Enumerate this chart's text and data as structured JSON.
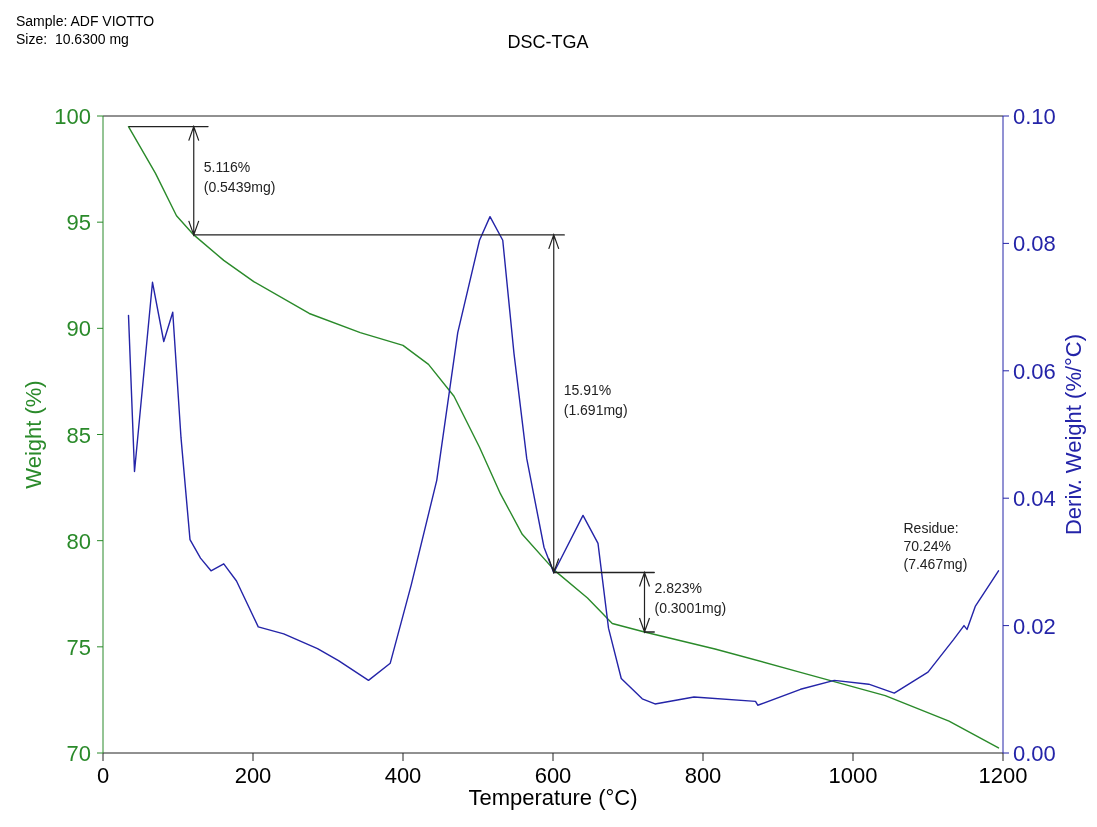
{
  "chart_data": {
    "type": "line",
    "title": "DSC-TGA",
    "xlabel": "Temperature (°C)",
    "ylabel": "Weight (%)",
    "y2label": "Deriv. Weight (%/°C)",
    "xlim": [
      0,
      1200
    ],
    "xticks": [
      0,
      200,
      400,
      600,
      800,
      1000,
      1200
    ],
    "ylim": [
      70,
      100
    ],
    "yticks": [
      70,
      75,
      80,
      85,
      90,
      95,
      100
    ],
    "y2lim": [
      0,
      0.1
    ],
    "y2ticks": [
      {
        "value": 0,
        "label": "0.00"
      },
      {
        "value": 0.02,
        "label": "0.02"
      },
      {
        "value": 0.04,
        "label": "0.04"
      },
      {
        "value": 0.06,
        "label": "0.06"
      },
      {
        "value": 0.08,
        "label": "0.08"
      },
      {
        "value": 0.1,
        "label": "0.10"
      }
    ],
    "grid": false,
    "series": [
      {
        "color": "#2a8a2a",
        "x": [
          34,
          70,
          98,
          121,
          161,
          201,
          275,
          343,
          400,
          434,
          468,
          502,
          530,
          559,
          602,
          646,
          679,
          722,
          816,
          930,
          1043,
          1128,
          1194
        ],
        "values": [
          99.5,
          97.3,
          95.3,
          94.4,
          93.2,
          92.2,
          90.7,
          89.8,
          89.2,
          88.3,
          86.8,
          84.4,
          82.2,
          80.3,
          78.6,
          77.3,
          76.1,
          75.7,
          74.9,
          73.8,
          72.7,
          71.5,
          70.24
        ]
      },
      {
        "color": "#2424a8",
        "axis": "y2",
        "x": [
          34,
          42,
          66,
          81,
          93,
          104,
          116,
          130,
          144,
          161,
          178,
          207,
          241,
          286,
          314,
          354,
          383,
          411,
          445,
          473,
          502,
          516,
          533,
          548,
          565,
          588,
          601,
          640,
          660,
          674,
          691,
          719,
          736,
          788,
          870,
          873,
          930,
          975,
          1021,
          1055,
          1100,
          1134,
          1148,
          1152,
          1163,
          1194
        ],
        "values": [
          0.0687,
          0.0442,
          0.0739,
          0.0646,
          0.0692,
          0.0495,
          0.0335,
          0.0306,
          0.0286,
          0.0297,
          0.027,
          0.0198,
          0.0187,
          0.0164,
          0.0145,
          0.0114,
          0.0141,
          0.0264,
          0.0428,
          0.066,
          0.0805,
          0.0842,
          0.0805,
          0.0627,
          0.0462,
          0.0323,
          0.0283,
          0.0373,
          0.0329,
          0.0196,
          0.0117,
          0.0085,
          0.0077,
          0.0088,
          0.0081,
          0.0075,
          0.01,
          0.0114,
          0.0108,
          0.0094,
          0.0127,
          0.0178,
          0.02,
          0.0194,
          0.023,
          0.0286
        ]
      },
      {
        "color": "#222222",
        "x": [
          35,
          140
        ],
        "values": [
          99.5,
          99.5
        ]
      },
      {
        "color": "#222222",
        "x": [
          121,
          615
        ],
        "values": [
          94.4,
          94.4
        ]
      },
      {
        "color": "#222222",
        "x": [
          601,
          735
        ],
        "values": [
          78.5,
          78.5
        ]
      },
      {
        "color": "#222222",
        "x": [
          722,
          735
        ],
        "values": [
          75.7,
          75.7
        ]
      }
    ],
    "annotations": [
      "Sample: ADF VIOTTO",
      "Size:  10.6300 mg",
      {
        "text": "5.116%\n(0.5439mg)",
        "x": 121,
        "y": 94.4
      },
      "15.91%\n(1.691mg)",
      {
        "text": "2.823%\n(0.3001mg)",
        "x": 722,
        "y": 75.7
      },
      "Residue:\n70.24%\n(7.467mg)"
    ]
  }
}
